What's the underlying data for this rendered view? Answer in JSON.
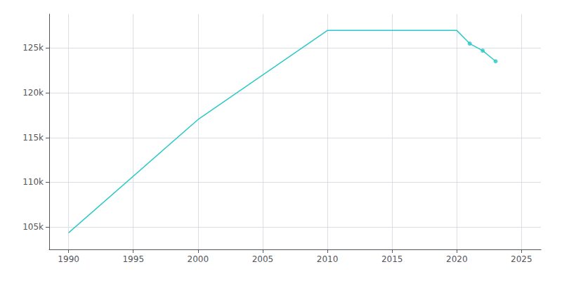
{
  "chart_data": {
    "type": "line",
    "x": [
      1990,
      2000,
      2010,
      2020,
      2021,
      2022,
      2023
    ],
    "series": [
      {
        "type": "line",
        "color": "#2ec8c8",
        "values": [
          104352,
          117005,
          126966,
          126966,
          125498,
          124711,
          123520
        ]
      },
      {
        "type": "scatter",
        "marker": "circle",
        "color": "#2ec8c8",
        "x": [
          2021,
          2022,
          2023
        ],
        "values": [
          125498,
          124711,
          123520
        ]
      }
    ],
    "xlim": [
      1988.5,
      2026.5
    ],
    "xticks": [
      1990,
      1995,
      2000,
      2005,
      2010,
      2015,
      2020,
      2025
    ],
    "ylim": [
      102500,
      128800
    ],
    "yticks": [
      {
        "value": 105000,
        "label": "105k"
      },
      {
        "value": 110000,
        "label": "110k"
      },
      {
        "value": 115000,
        "label": "115k"
      },
      {
        "value": 120000,
        "label": "120k"
      },
      {
        "value": 125000,
        "label": "125k"
      }
    ],
    "grid": true
  }
}
